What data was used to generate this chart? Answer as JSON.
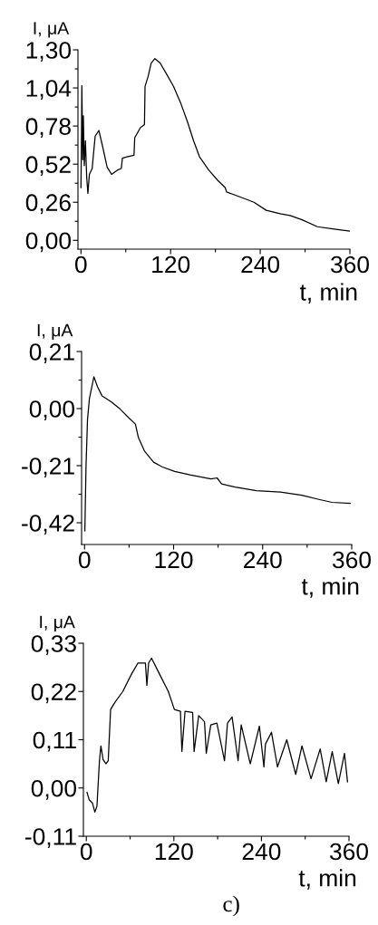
{
  "chart_data": [
    {
      "type": "line",
      "ylabel": "I, μA",
      "xlabel": "t, min",
      "xlim": [
        -4,
        360
      ],
      "ylim": [
        -0.06,
        1.3
      ],
      "xticks": [
        0,
        {
          "value": 60,
          "label": null
        },
        120,
        {
          "value": 180,
          "label": null
        },
        240,
        {
          "value": 300,
          "label": null
        },
        360
      ],
      "yticks": [
        {
          "value": 0,
          "label": "0,00"
        },
        {
          "value": 0.13,
          "label": null
        },
        {
          "value": 0.26,
          "label": "0,26"
        },
        {
          "value": 0.39,
          "label": null
        },
        {
          "value": 0.52,
          "label": "0,52"
        },
        {
          "value": 0.65,
          "label": null
        },
        {
          "value": 0.78,
          "label": "0,78"
        },
        {
          "value": 0.91,
          "label": null
        },
        {
          "value": 1.04,
          "label": "1,04"
        },
        {
          "value": 1.17,
          "label": null
        },
        {
          "value": 1.3,
          "label": "1,30"
        }
      ],
      "grid": false,
      "series": [
        {
          "color": "#000000",
          "x": [
            0,
            0.8,
            1.2,
            2.4,
            3.2,
            4.5,
            6,
            7.7,
            9.3,
            11.3,
            15,
            19,
            24,
            29,
            35,
            41,
            49,
            54,
            55.5,
            61.5,
            71,
            72,
            79.7,
            85,
            85.8,
            90,
            94,
            99,
            106,
            114,
            124,
            134,
            142.5,
            150.7,
            158.7,
            171,
            183,
            193,
            195,
            211,
            231.6,
            248,
            268,
            280,
            296,
            316.6,
            337,
            360
          ],
          "values": [
            0.36,
            0.73,
            1.055,
            0.55,
            0.85,
            0.51,
            0.68,
            0.43,
            0.32,
            0.45,
            0.49,
            0.71,
            0.75,
            0.64,
            0.5,
            0.45,
            0.48,
            0.49,
            0.56,
            0.57,
            0.58,
            0.7,
            0.77,
            0.79,
            1.05,
            1.12,
            1.21,
            1.24,
            1.21,
            1.14,
            1.05,
            0.93,
            0.81,
            0.68,
            0.57,
            0.48,
            0.41,
            0.36,
            0.33,
            0.3,
            0.26,
            0.205,
            0.18,
            0.17,
            0.14,
            0.093,
            0.078,
            0.063
          ]
        }
      ]
    },
    {
      "type": "line",
      "ylabel": "I, μA",
      "xlabel": "t, min",
      "xlim": [
        -4,
        360
      ],
      "ylim": [
        -0.5,
        0.21
      ],
      "xticks": [
        0,
        {
          "value": 60,
          "label": null
        },
        120,
        {
          "value": 180,
          "label": null
        },
        240,
        {
          "value": 300,
          "label": null
        },
        360
      ],
      "yticks": [
        {
          "value": -0.42,
          "label": "-0,42"
        },
        {
          "value": -0.315,
          "label": null
        },
        {
          "value": -0.21,
          "label": "-0,21"
        },
        {
          "value": -0.105,
          "label": null
        },
        {
          "value": 0,
          "label": "0,00"
        },
        {
          "value": 0.105,
          "label": null
        },
        {
          "value": 0.21,
          "label": "0,21"
        }
      ],
      "grid": false,
      "series": [
        {
          "color": "#000000",
          "x": [
            0.4,
            2,
            4,
            6.5,
            12.6,
            17.5,
            23.6,
            35.9,
            48,
            60,
            68.5,
            72.6,
            80.7,
            93,
            105,
            121.5,
            142,
            170.4,
            178.5,
            184.7,
            203,
            231.6,
            264,
            292.7,
            317,
            333.5,
            358
          ],
          "values": [
            -0.45,
            -0.21,
            -0.04,
            0.036,
            0.117,
            0.08,
            0.047,
            0.025,
            -0.002,
            -0.035,
            -0.057,
            -0.107,
            -0.156,
            -0.197,
            -0.215,
            -0.231,
            -0.244,
            -0.259,
            -0.255,
            -0.277,
            -0.289,
            -0.302,
            -0.307,
            -0.319,
            -0.335,
            -0.345,
            -0.349
          ]
        }
      ]
    },
    {
      "type": "line",
      "ylabel": "I, μA",
      "xlabel": "t, min",
      "xlim": [
        -4,
        360
      ],
      "ylim": [
        -0.11,
        0.33
      ],
      "xticks": [
        0,
        {
          "value": 60,
          "label": null
        },
        120,
        {
          "value": 180,
          "label": null
        },
        240,
        {
          "value": 300,
          "label": null
        },
        360
      ],
      "yticks": [
        {
          "value": -0.11,
          "label": "-0,11"
        },
        {
          "value": 0,
          "label": "0,00"
        },
        {
          "value": 0.11,
          "label": "0,11"
        },
        {
          "value": 0.22,
          "label": "0,22"
        },
        {
          "value": 0.33,
          "label": "0,33"
        }
      ],
      "grid": false,
      "annotations": [
        "c)"
      ],
      "series": [
        {
          "color": "#000000",
          "x": [
            1,
            4,
            8.3,
            11.7,
            14.6,
            18,
            20,
            23,
            27,
            30,
            33.3,
            39.5,
            50,
            62.4,
            70.8,
            81,
            83,
            85.4,
            89.4,
            99.9,
            112.4,
            120.7,
            129,
            131,
            135.3,
            145.7,
            147.7,
            154,
            162,
            164.4,
            170.6,
            178.9,
            189.4,
            193.5,
            199.8,
            208,
            212.3,
            224.7,
            237.2,
            243.4,
            245.5,
            253.8,
            262,
            274.7,
            287,
            295.5,
            308,
            320.5,
            328.8,
            337,
            345.4,
            353.8,
            358
          ],
          "values": [
            -0.01,
            -0.027,
            -0.034,
            -0.055,
            -0.041,
            0.062,
            0.096,
            0.065,
            0.055,
            0.062,
            0.179,
            0.196,
            0.22,
            0.261,
            0.285,
            0.285,
            0.234,
            0.285,
            0.296,
            0.261,
            0.22,
            0.179,
            0.175,
            0.083,
            0.175,
            0.172,
            0.083,
            0.165,
            0.151,
            0.079,
            0.144,
            0.148,
            0.062,
            0.148,
            0.162,
            0.062,
            0.144,
            0.055,
            0.141,
            0.048,
            0.1,
            0.127,
            0.048,
            0.11,
            0.031,
            0.096,
            0.021,
            0.089,
            0.014,
            0.083,
            0.01,
            0.079,
            0.014
          ]
        }
      ]
    }
  ]
}
